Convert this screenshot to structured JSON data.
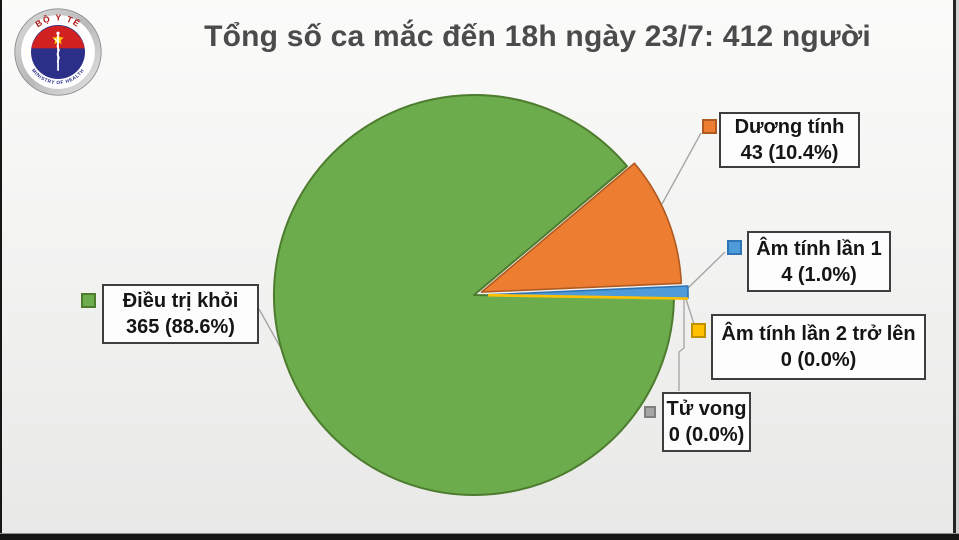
{
  "title": "Tổng số ca mắc đến 18h ngày 23/7: 412 người",
  "logo": {
    "top_text": "BỘ Y TẾ",
    "bottom_text": "MINISTRY OF HEALTH"
  },
  "chart_data": {
    "type": "pie",
    "title": "Tổng số ca mắc đến 18h ngày 23/7: 412 người",
    "total": 412,
    "legend_position": "outside-callouts",
    "start_angle_deg": 49.9,
    "slices": [
      {
        "name": "Dương tính",
        "value": 43,
        "percent": 10.4,
        "label_line1": "Dương tính",
        "label_line2": "43 (10.4%)",
        "color": "#ED7D31",
        "border": "#AE5A21",
        "explode": 8
      },
      {
        "name": "Âm tính lần 1",
        "value": 4,
        "percent": 1.0,
        "label_line1": "Âm tính lần 1",
        "label_line2": "4 (1.0%)",
        "color": "#4E9BD9",
        "border": "#2E74B5",
        "explode": 14
      },
      {
        "name": "Âm tính lần 2 trở lên",
        "value": 0,
        "percent": 0.0,
        "label_line1": "Âm tính lần 2 trở lên",
        "label_line2": "0 (0.0%)",
        "color": "#FFC000",
        "border": "#BF9000",
        "explode": 14
      },
      {
        "name": "Tử vong",
        "value": 0,
        "percent": 0.0,
        "label_line1": "Tử vong",
        "label_line2": "0 (0.0%)",
        "color": "#A5A5A5",
        "border": "#7F7F7F",
        "explode": 14
      },
      {
        "name": "Điều trị khỏi",
        "value": 365,
        "percent": 88.6,
        "label_line1": "Điều trị khỏi",
        "label_line2": "365 (88.6%)",
        "color": "#6CAC4D",
        "border": "#4E7C2F",
        "explode": 0
      }
    ]
  }
}
